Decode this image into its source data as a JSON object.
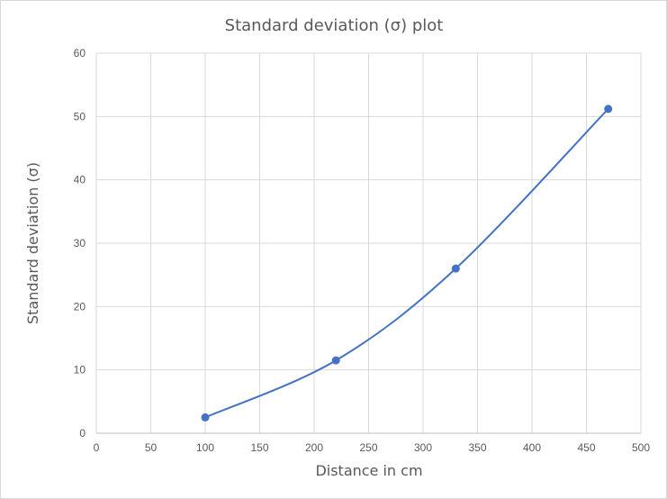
{
  "chart_data": {
    "type": "scatter",
    "title": "Standard deviation (σ) plot",
    "xlabel": "Distance in cm",
    "ylabel": "Standard deviation (σ)",
    "xlim": [
      0,
      500
    ],
    "ylim": [
      0,
      60
    ],
    "xticks": [
      "0",
      "50",
      "100",
      "150",
      "200",
      "250",
      "300",
      "350",
      "400",
      "450",
      "500"
    ],
    "yticks": [
      "0",
      "10",
      "20",
      "30",
      "40",
      "50",
      "60"
    ],
    "grid": true,
    "smooth_line": true,
    "series": [
      {
        "x": [
          100,
          220,
          330,
          470
        ],
        "y": [
          2.5,
          11.5,
          26,
          51.2
        ],
        "color": "#4472c4"
      }
    ]
  }
}
